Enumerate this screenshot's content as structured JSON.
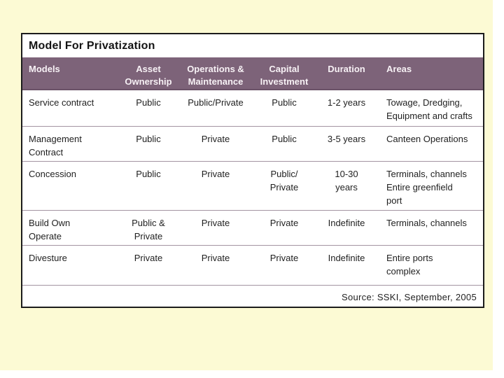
{
  "colors": {
    "slide_bg": "#fcfad4",
    "header_bg": "#7d6379",
    "header_text": "#f7f1f5",
    "card_border": "#1c1c1c",
    "divider": "#a394a1",
    "body_text": "#1f1f1f"
  },
  "card": {
    "title": "Model For Privatization",
    "source_note": "Source: SSKI, September, 2005"
  },
  "table": {
    "headers": [
      "Models",
      "Asset\nOwnership",
      "Operations &\nMaintenance",
      "Capital\nInvestment",
      "Duration",
      "Areas"
    ],
    "rows": [
      [
        "Service contract",
        "Public",
        "Public/Private",
        "Public",
        "1-2 years",
        "Towage, Dredging,\nEquipment and crafts"
      ],
      [
        "Management\nContract",
        "Public",
        "Private",
        "Public",
        "3-5 years",
        "Canteen Operations"
      ],
      [
        "Concession",
        "Public",
        "Private",
        "Public/\nPrivate",
        "10-30\nyears",
        "Terminals, channels\nEntire greenfield\nport"
      ],
      [
        "Build Own\nOperate",
        "Public &\nPrivate",
        "Private",
        "Private",
        "Indefinite",
        "Terminals, channels"
      ],
      [
        "Divesture",
        "Private",
        "Private",
        "Private",
        "Indefinite",
        "Entire ports\ncomplex"
      ]
    ]
  }
}
